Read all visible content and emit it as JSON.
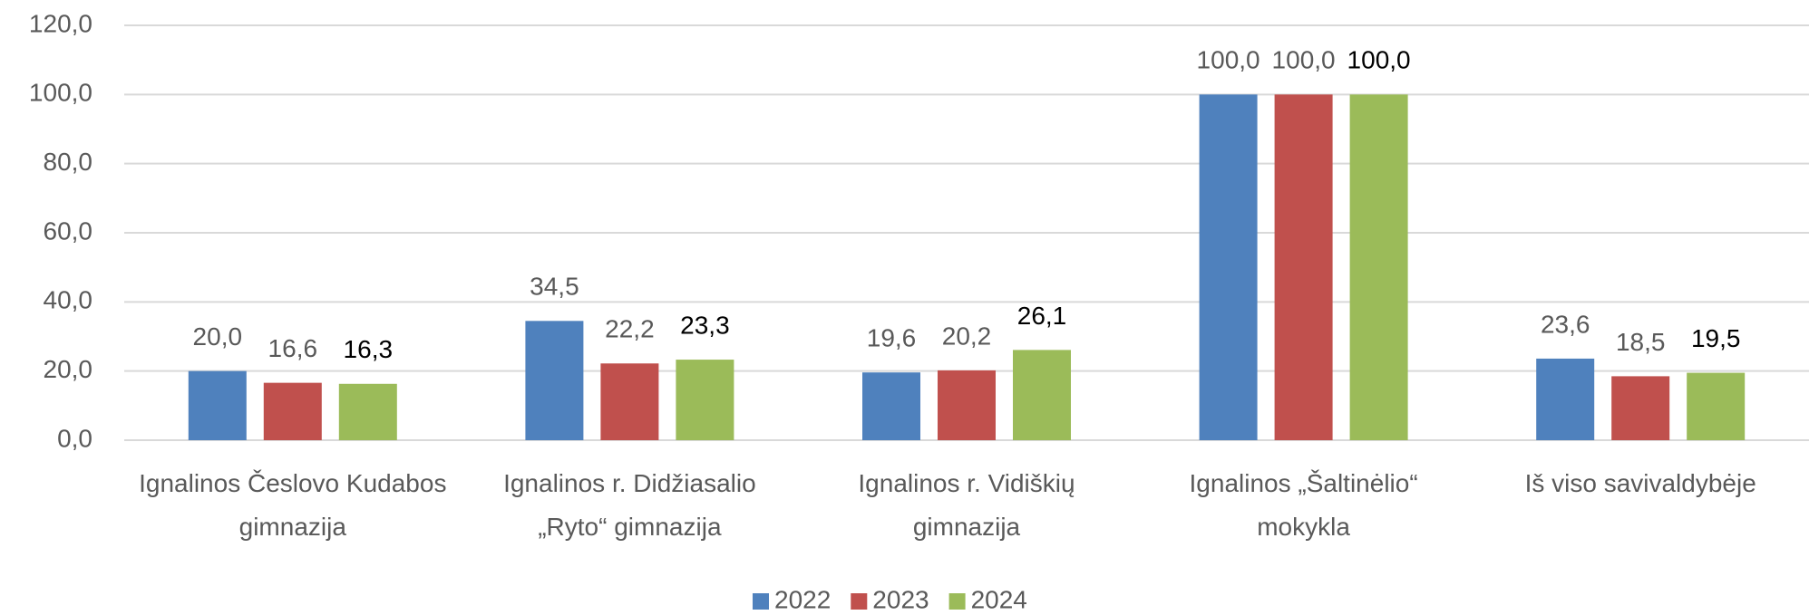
{
  "chart_data": {
    "type": "bar",
    "categories": [
      "Ignalinos Česlovo Kudabos gimnazija",
      "Ignalinos r. Didžiasalio „Ryto“ gimnazija",
      "Ignalinos r. Vidiškių gimnazija",
      "Ignalinos „Šaltinėlio“ mokykla",
      "Iš viso savivaldybėje"
    ],
    "series": [
      {
        "name": "2022",
        "color": "#4f81bd",
        "values": [
          20.0,
          34.5,
          19.6,
          100.0,
          23.6
        ],
        "value_labels": [
          "20,0",
          "34,5",
          "19,6",
          "100,0",
          "23,6"
        ]
      },
      {
        "name": "2023",
        "color": "#c0504d",
        "values": [
          16.6,
          22.2,
          20.2,
          100.0,
          18.5
        ],
        "value_labels": [
          "16,6",
          "22,2",
          "20,2",
          "100,0",
          "18,5"
        ]
      },
      {
        "name": "2024",
        "color": "#9bbb59",
        "values": [
          16.3,
          23.3,
          26.1,
          100.0,
          19.5
        ],
        "value_labels": [
          "16,3",
          "23,3",
          "26,1",
          "100,0",
          "19,5"
        ]
      }
    ],
    "ylim": [
      0,
      120
    ],
    "yticks": [
      {
        "value": 0,
        "label": "0,0"
      },
      {
        "value": 20,
        "label": "20,0"
      },
      {
        "value": 40,
        "label": "40,0"
      },
      {
        "value": 60,
        "label": "60,0"
      },
      {
        "value": 80,
        "label": "80,0"
      },
      {
        "value": 100,
        "label": "100,0"
      },
      {
        "value": 120,
        "label": "120,0"
      }
    ],
    "grid": true,
    "legend": "bottom"
  }
}
